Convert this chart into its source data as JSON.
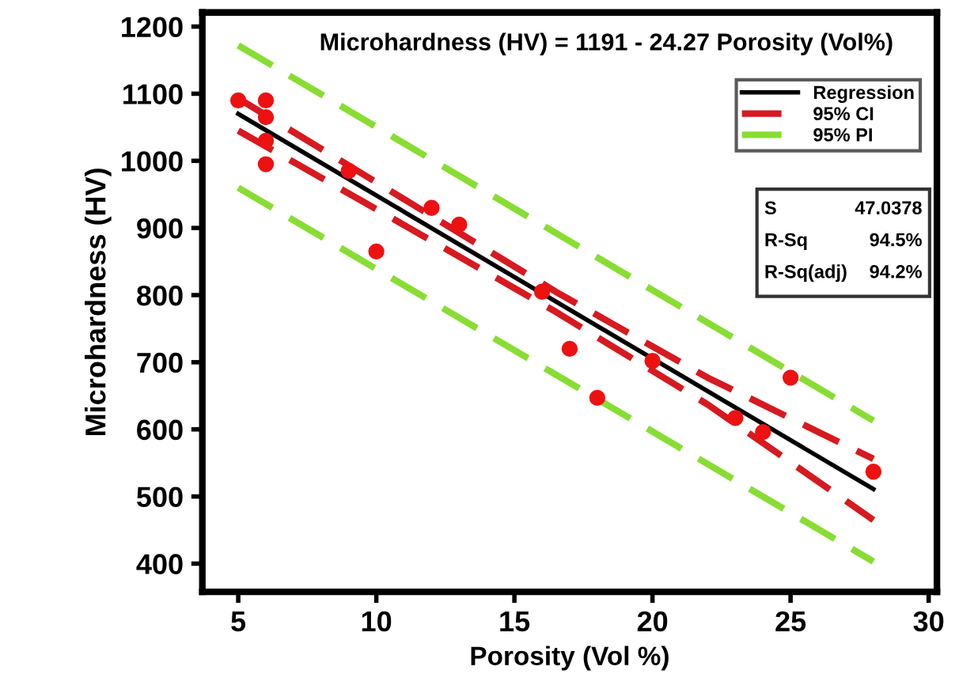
{
  "chart_data": {
    "type": "scatter",
    "title": "Microhardness (HV) = 1191 - 24.27 Porosity (Vol%)",
    "xlabel": "Porosity (Vol %)",
    "ylabel": "Microhardness (HV)",
    "xlim": [
      3.7,
      30.3
    ],
    "ylim": [
      358,
      1221
    ],
    "xticks": [
      5,
      10,
      15,
      20,
      25,
      30
    ],
    "yticks": [
      400,
      500,
      600,
      700,
      800,
      900,
      1000,
      1100,
      1200
    ],
    "grid": false,
    "legend": "top right",
    "series": [
      {
        "marker": "circle",
        "color": "#ee1111",
        "x": [
          5,
          6,
          6,
          6,
          6,
          9,
          10,
          12,
          13,
          16,
          17,
          18,
          20,
          23,
          24,
          25,
          28
        ],
        "values": [
          1090,
          1090,
          1065,
          1030,
          995,
          985,
          865,
          930,
          905,
          805,
          720,
          647,
          702,
          617,
          596,
          677,
          537
        ]
      },
      {
        "type": "line",
        "name": "Regression",
        "color": "#000000",
        "line_style": "solid",
        "x": [
          5,
          28
        ],
        "values": [
          1070,
          511
        ]
      },
      {
        "type": "line",
        "name": "95% CI",
        "color": "#d71920",
        "line_style": "dashed",
        "x": [
          5,
          10,
          16.5,
          22,
          28
        ],
        "values": [
          1093,
          968,
          805,
          677,
          556
        ]
      },
      {
        "type": "line",
        "color": "#d71920",
        "line_style": "dashed",
        "x": [
          5,
          10,
          16.5,
          22,
          28
        ],
        "values": [
          1045,
          928,
          775,
          637,
          465
        ]
      },
      {
        "type": "line",
        "name": "95% PI",
        "color": "#88dd33",
        "line_style": "dashed",
        "x": [
          5,
          28
        ],
        "values": [
          1172,
          613
        ]
      },
      {
        "type": "line",
        "color": "#88dd33",
        "line_style": "dashed",
        "x": [
          5,
          28
        ],
        "values": [
          960,
          403
        ]
      }
    ],
    "annotations": [
      "S",
      "47.0378",
      "R-Sq",
      "94.5%",
      "R-Sq(adj)",
      "94.2%"
    ]
  }
}
